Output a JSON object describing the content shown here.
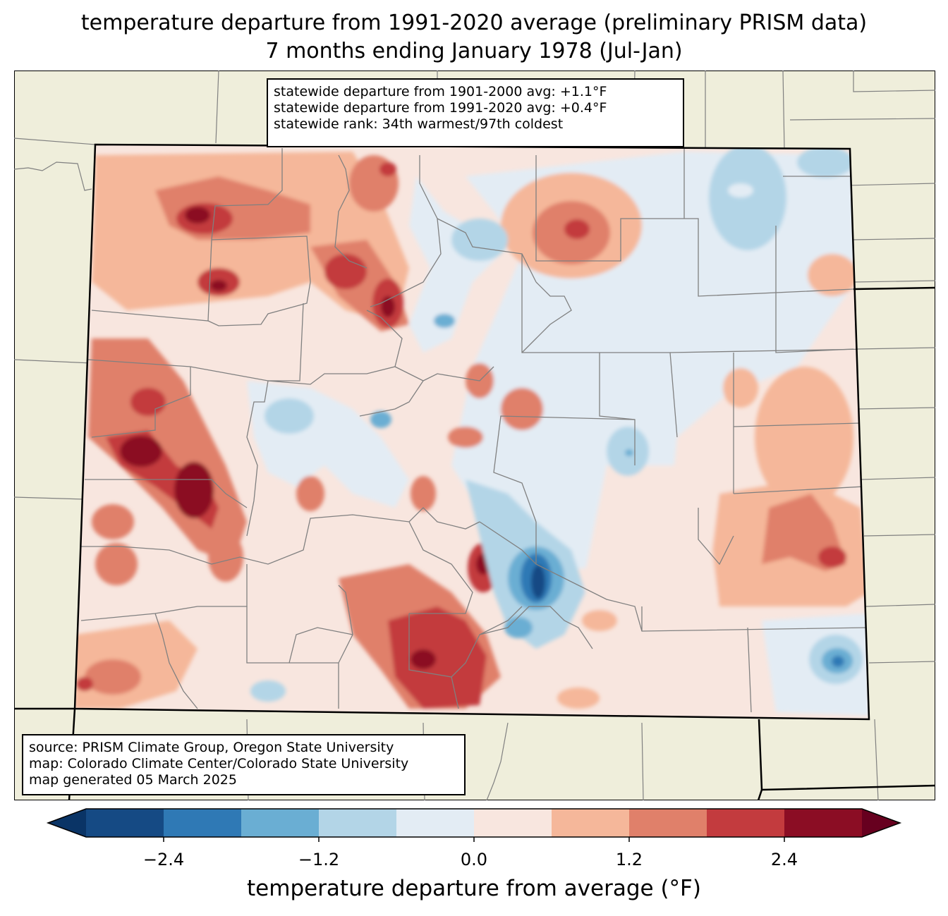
{
  "title": {
    "line1": "temperature departure from 1991-2020 average (preliminary PRISM data)",
    "line2": "7 months ending January 1978 (Jul-Jan)"
  },
  "stats": {
    "line1": "statewide departure from 1901-2000 avg: +1.1°F",
    "line2": "statewide departure from 1991-2020 avg: +0.4°F",
    "line3": "statewide rank: 34th warmest/97th coldest"
  },
  "credits": {
    "line1": "source: PRISM Climate Group, Oregon State University",
    "line2": "map: Colorado Climate Center/Colorado State University",
    "line3": "map generated 05 March 2025"
  },
  "colorbar": {
    "label": "temperature departure from average (°F)",
    "bins": [
      {
        "min": -3.0,
        "max": -2.4,
        "color": "#154a84"
      },
      {
        "min": -2.4,
        "max": -1.8,
        "color": "#2f79b5"
      },
      {
        "min": -1.8,
        "max": -1.2,
        "color": "#6aaed3"
      },
      {
        "min": -1.2,
        "max": -0.6,
        "color": "#b3d5e7"
      },
      {
        "min": -0.6,
        "max": 0.0,
        "color": "#e3ecf4"
      },
      {
        "min": 0.0,
        "max": 0.6,
        "color": "#f8e6df"
      },
      {
        "min": 0.6,
        "max": 1.2,
        "color": "#f5b79a"
      },
      {
        "min": 1.2,
        "max": 1.8,
        "color": "#e0806a"
      },
      {
        "min": 1.8,
        "max": 2.4,
        "color": "#c33b3e"
      },
      {
        "min": 2.4,
        "max": 3.0,
        "color": "#8b0d24"
      }
    ],
    "under_color": "#0a3466",
    "over_color": "#67001f",
    "ticks": [
      {
        "value": -2.4,
        "label": "−2.4"
      },
      {
        "value": -1.2,
        "label": "−1.2"
      },
      {
        "value": 0.0,
        "label": "0.0"
      },
      {
        "value": 1.2,
        "label": "1.2"
      },
      {
        "value": 2.4,
        "label": "2.4"
      }
    ]
  },
  "colors": {
    "background_land": "#efeedb",
    "state_fill": "#f8e6df",
    "county_line": "#808080",
    "border": "#000000"
  }
}
